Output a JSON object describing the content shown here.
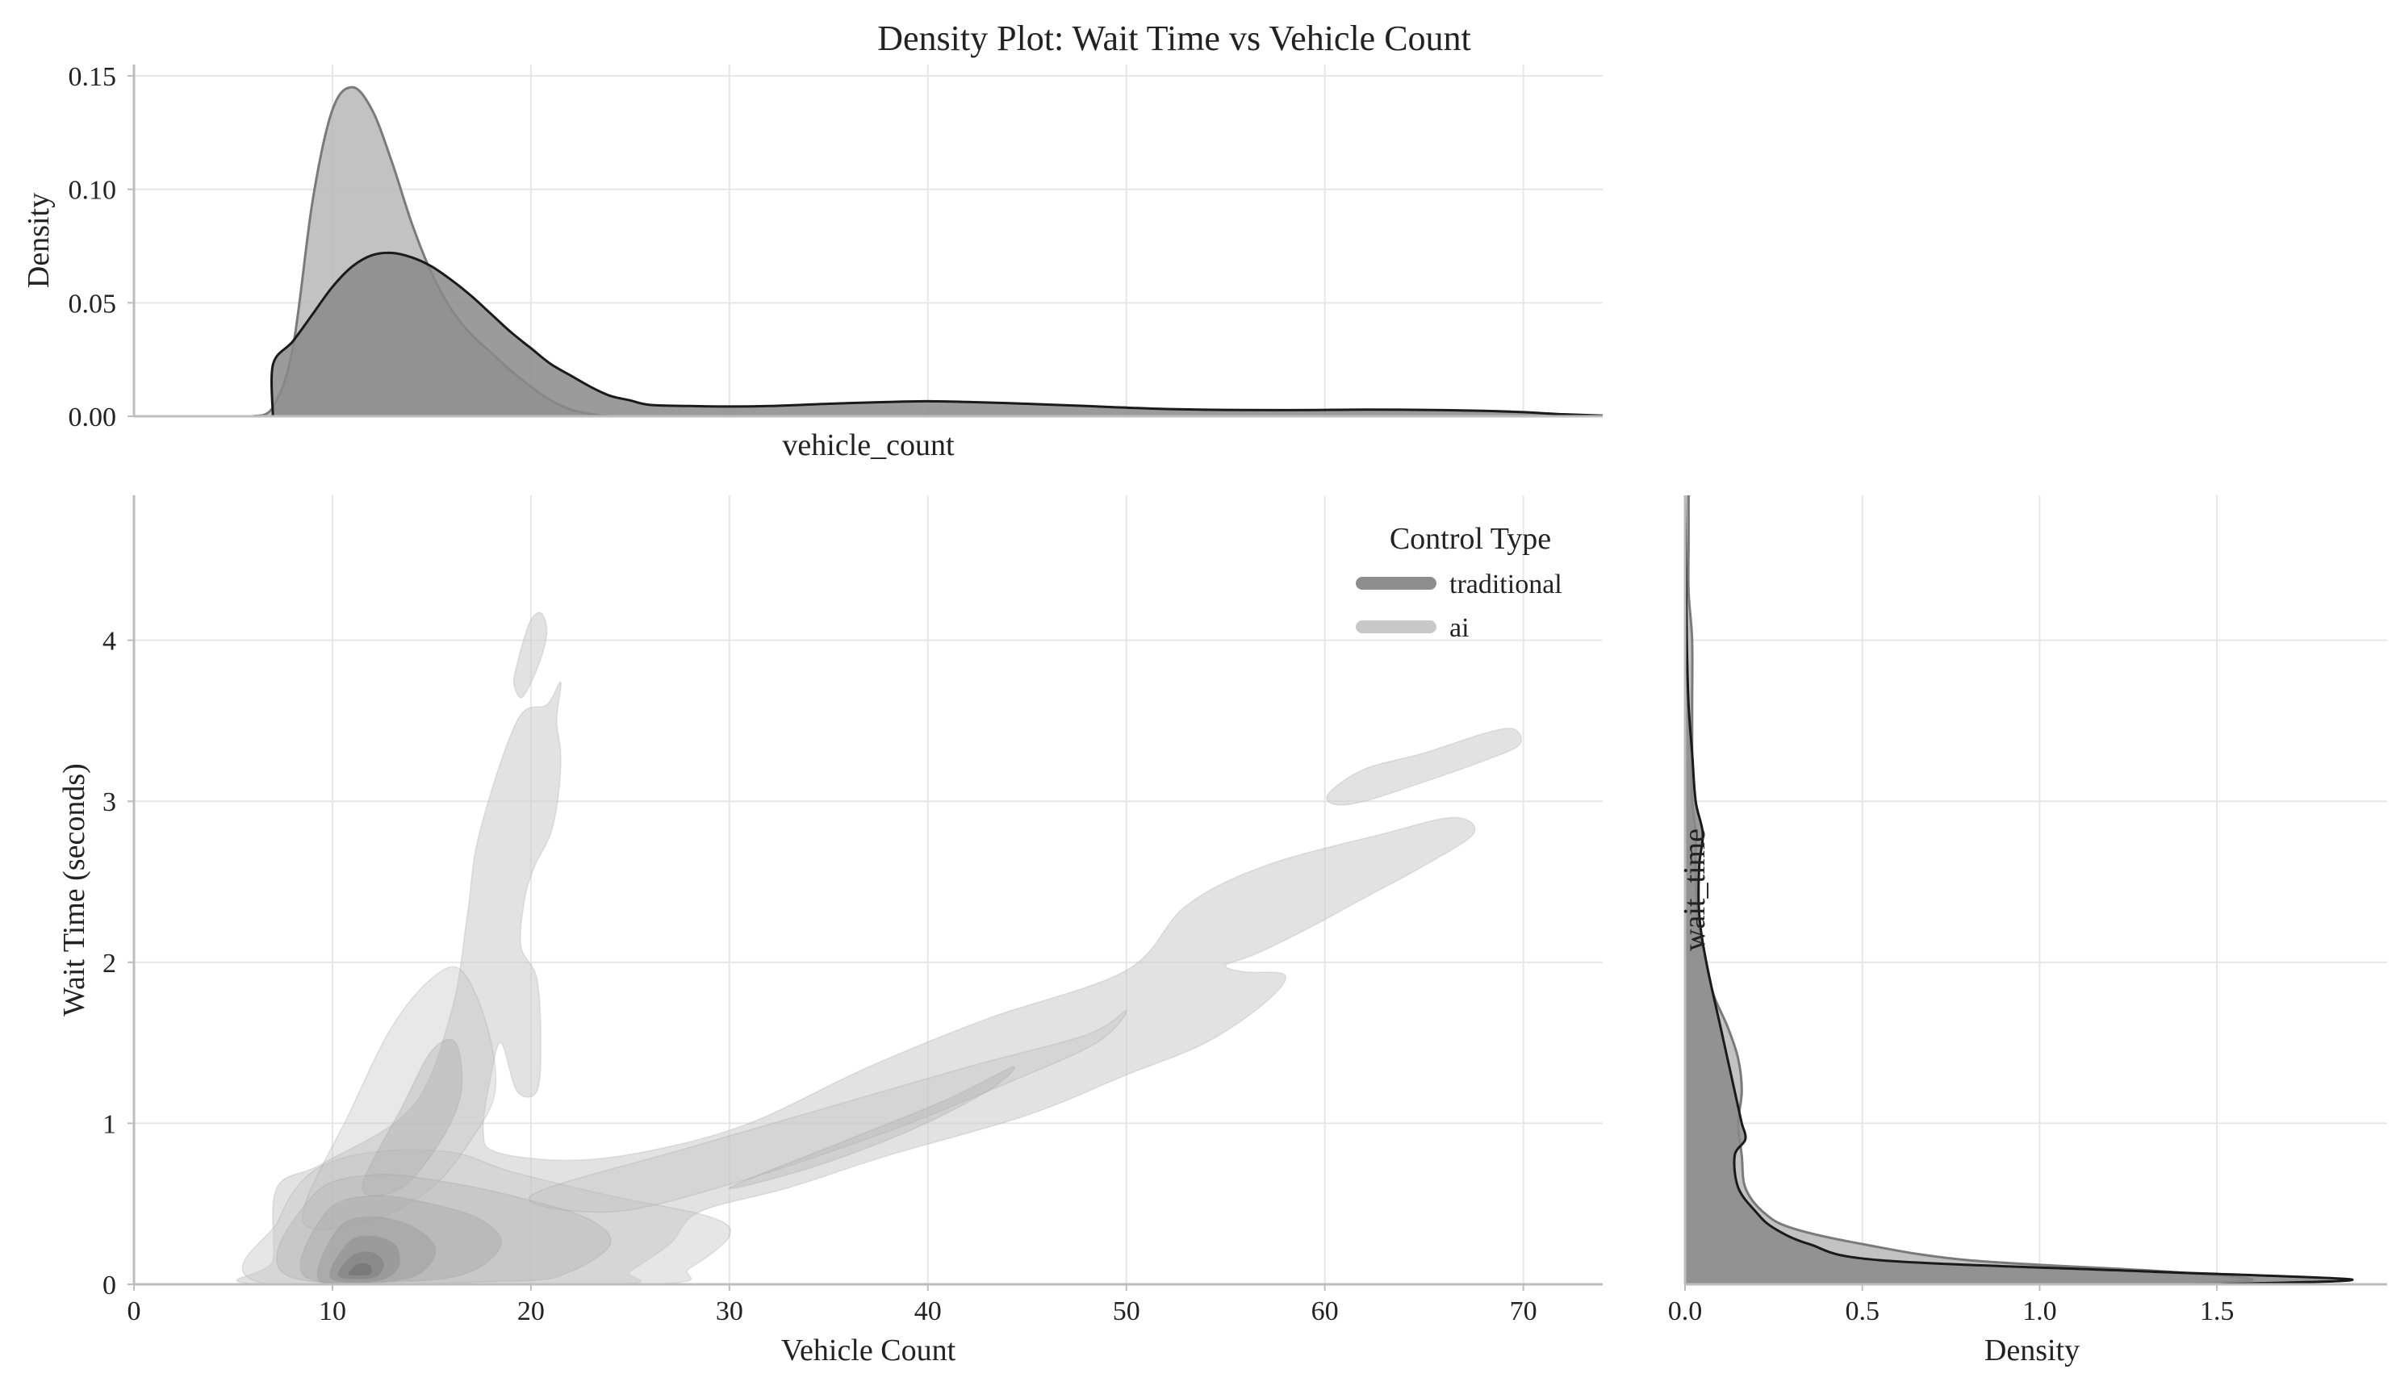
{
  "chart_data": [
    {
      "type": "area",
      "panel": "top-marginal",
      "title": "Density Plot: Wait Time vs Vehicle Count",
      "xlabel": "vehicle_count",
      "ylabel": "Density",
      "xlim": [
        0,
        74
      ],
      "ylim": [
        0,
        0.155
      ],
      "yticks": [
        0.0,
        0.05,
        0.1,
        0.15
      ],
      "ytick_labels": [
        "0.00",
        "0.05",
        "0.10",
        "0.15"
      ],
      "grid": true,
      "series": [
        {
          "name": "ai",
          "color": "#b7b7b7",
          "edge": "#7a7a7a",
          "x": [
            6,
            7,
            8,
            9,
            10,
            11,
            12,
            13,
            14,
            15,
            16,
            17,
            18,
            19,
            20,
            21,
            22,
            23,
            24,
            25,
            26,
            27,
            28
          ],
          "y": [
            0.0,
            0.004,
            0.03,
            0.095,
            0.135,
            0.145,
            0.135,
            0.112,
            0.085,
            0.063,
            0.047,
            0.036,
            0.028,
            0.02,
            0.013,
            0.007,
            0.003,
            0.001,
            0.0,
            0.0,
            0.0,
            0.0,
            0.0
          ]
        },
        {
          "name": "traditional",
          "color": "#8a8a8a",
          "edge": "#1a1a1a",
          "x": [
            7,
            7.01,
            8,
            9,
            10,
            11,
            12,
            13,
            14,
            15,
            16,
            17,
            18,
            19,
            20,
            21,
            22,
            23,
            24,
            25,
            26,
            28,
            30,
            32,
            35,
            38,
            40,
            42,
            45,
            48,
            50,
            52,
            55,
            58,
            60,
            62,
            65,
            68,
            70,
            72,
            74
          ],
          "y": [
            0.0,
            0.023,
            0.033,
            0.045,
            0.057,
            0.066,
            0.071,
            0.072,
            0.07,
            0.066,
            0.06,
            0.053,
            0.045,
            0.037,
            0.03,
            0.023,
            0.018,
            0.013,
            0.009,
            0.007,
            0.005,
            0.0045,
            0.0043,
            0.0045,
            0.0055,
            0.0063,
            0.0066,
            0.0063,
            0.0055,
            0.0045,
            0.0038,
            0.0032,
            0.0028,
            0.0027,
            0.0028,
            0.0029,
            0.0028,
            0.0024,
            0.0018,
            0.0009,
            0.0003
          ]
        }
      ]
    },
    {
      "type": "heatmap",
      "subtype": "kde-contour",
      "panel": "joint",
      "xlabel": "Vehicle Count",
      "ylabel": "Wait Time (seconds)",
      "xlim": [
        0,
        74
      ],
      "ylim": [
        0,
        4.9
      ],
      "xticks": [
        0,
        10,
        20,
        30,
        40,
        50,
        60,
        70
      ],
      "yticks": [
        0,
        1,
        2,
        3,
        4
      ],
      "grid": true,
      "legend": {
        "title": "Control Type",
        "placement": "top-right",
        "entries": [
          {
            "label": "traditional",
            "color": "#8e8e8e"
          },
          {
            "label": "ai",
            "color": "#c8c8c8"
          }
        ]
      },
      "regions": [
        {
          "name": "outer-main",
          "fill": "#cfcfcf",
          "opacity": 0.6,
          "points": [
            [
              6.3,
              0
            ],
            [
              7.0,
              0.15
            ],
            [
              7.2,
              0.6
            ],
            [
              9.5,
              0.75
            ],
            [
              14,
              1.1
            ],
            [
              16,
              1.7
            ],
            [
              16.8,
              2.3
            ],
            [
              17.4,
              2.8
            ],
            [
              19.3,
              3.5
            ],
            [
              20.8,
              3.6
            ],
            [
              21.5,
              3.74
            ],
            [
              21.3,
              3.5
            ],
            [
              21.5,
              3.3
            ],
            [
              21.4,
              3.05
            ],
            [
              21.0,
              2.8
            ],
            [
              20.2,
              2.6
            ],
            [
              19.7,
              2.4
            ],
            [
              19.5,
              2.1
            ],
            [
              20.3,
              1.9
            ],
            [
              20.5,
              1.5
            ],
            [
              20.3,
              1.2
            ],
            [
              19.3,
              1.2
            ],
            [
              18.5,
              1.5
            ],
            [
              18.0,
              1.3
            ],
            [
              17.6,
              0.95
            ],
            [
              18.3,
              0.82
            ],
            [
              22,
              0.77
            ],
            [
              26,
              0.83
            ],
            [
              31,
              1.0
            ],
            [
              37,
              1.35
            ],
            [
              43,
              1.65
            ],
            [
              50,
              1.95
            ],
            [
              53,
              2.35
            ],
            [
              57,
              2.6
            ],
            [
              63,
              2.8
            ],
            [
              66.5,
              2.9
            ],
            [
              67.5,
              2.8
            ],
            [
              65,
              2.6
            ],
            [
              62,
              2.4
            ],
            [
              59,
              2.2
            ],
            [
              56.5,
              2.05
            ],
            [
              55,
              1.98
            ],
            [
              56,
              1.94
            ],
            [
              58,
              1.92
            ],
            [
              57,
              1.75
            ],
            [
              54,
              1.5
            ],
            [
              50,
              1.3
            ],
            [
              45,
              1.05
            ],
            [
              38,
              0.8
            ],
            [
              33,
              0.6
            ],
            [
              28.5,
              0.45
            ],
            [
              27,
              0.25
            ],
            [
              25,
              0.08
            ],
            [
              24,
              0
            ]
          ]
        },
        {
          "name": "upper-blob",
          "fill": "#cfcfcf",
          "opacity": 0.6,
          "points": [
            [
              19.2,
              3.8
            ],
            [
              19.9,
              4.1
            ],
            [
              20.5,
              4.17
            ],
            [
              20.8,
              4.05
            ],
            [
              20.4,
              3.85
            ],
            [
              19.6,
              3.65
            ],
            [
              19.2,
              3.7
            ]
          ]
        },
        {
          "name": "right-blob",
          "fill": "#cfcfcf",
          "opacity": 0.6,
          "points": [
            [
              60.2,
              3.05
            ],
            [
              62,
              3.2
            ],
            [
              65,
              3.3
            ],
            [
              68,
              3.42
            ],
            [
              69.5,
              3.45
            ],
            [
              69.8,
              3.35
            ],
            [
              68,
              3.25
            ],
            [
              65,
              3.12
            ],
            [
              62,
              3.0
            ],
            [
              60.5,
              2.98
            ]
          ]
        },
        {
          "name": "traditional-outer",
          "fill": "#c8c8c8",
          "opacity": 0.45,
          "points": [
            [
              6.8,
              0
            ],
            [
              7.3,
              0.4
            ],
            [
              9,
              0.7
            ],
            [
              12,
              0.82
            ],
            [
              16,
              0.82
            ],
            [
              19,
              0.7
            ],
            [
              24,
              0.55
            ],
            [
              29,
              0.42
            ],
            [
              30,
              0.3
            ],
            [
              28,
              0.1
            ],
            [
              26,
              0
            ]
          ]
        },
        {
          "name": "mid-diagonal",
          "fill": "#bdbdbd",
          "opacity": 0.35,
          "points": [
            [
              20,
              0.55
            ],
            [
              28,
              0.85
            ],
            [
              35,
              1.1
            ],
            [
              42,
              1.35
            ],
            [
              48,
              1.55
            ],
            [
              50,
              1.7
            ],
            [
              48.5,
              1.5
            ],
            [
              44,
              1.25
            ],
            [
              38,
              0.95
            ],
            [
              30,
              0.62
            ],
            [
              24,
              0.45
            ]
          ]
        },
        {
          "name": "inner-diagonal",
          "fill": "#b0b0b0",
          "opacity": 0.35,
          "points": [
            [
              30,
              0.6
            ],
            [
              36,
              0.9
            ],
            [
              41,
              1.15
            ],
            [
              44.3,
              1.35
            ],
            [
              43,
              1.2
            ],
            [
              39,
              0.95
            ],
            [
              34,
              0.72
            ]
          ]
        },
        {
          "name": "vertical-band",
          "fill": "#bdbdbd",
          "opacity": 0.35,
          "points": [
            [
              8.5,
              0.4
            ],
            [
              11,
              1.1
            ],
            [
              13,
              1.6
            ],
            [
              15,
              1.9
            ],
            [
              16.5,
              1.95
            ],
            [
              17.8,
              1.6
            ],
            [
              18.2,
              1.2
            ],
            [
              17,
              0.9
            ],
            [
              15,
              0.6
            ],
            [
              12,
              0.4
            ]
          ]
        },
        {
          "name": "vertical-inner",
          "fill": "#aaaaaa",
          "opacity": 0.35,
          "points": [
            [
              11.5,
              0.6
            ],
            [
              13.5,
              1.1
            ],
            [
              15,
              1.45
            ],
            [
              16.2,
              1.5
            ],
            [
              16.5,
              1.2
            ],
            [
              15.5,
              0.9
            ],
            [
              13.5,
              0.6
            ]
          ]
        },
        {
          "name": "core-1",
          "fill": "#b5b5b5",
          "opacity": 0.4,
          "points": [
            [
              7.8,
              0.05
            ],
            [
              9,
              0.55
            ],
            [
              12,
              0.68
            ],
            [
              16,
              0.63
            ],
            [
              20,
              0.52
            ],
            [
              23,
              0.4
            ],
            [
              24,
              0.25
            ],
            [
              22,
              0.08
            ],
            [
              19,
              0.02
            ]
          ]
        },
        {
          "name": "core-2",
          "fill": "#a5a5a5",
          "opacity": 0.4,
          "points": [
            [
              8.6,
              0.05
            ],
            [
              9.7,
              0.45
            ],
            [
              12,
              0.55
            ],
            [
              15,
              0.5
            ],
            [
              17.5,
              0.4
            ],
            [
              18.5,
              0.25
            ],
            [
              17,
              0.08
            ],
            [
              14,
              0.02
            ]
          ]
        },
        {
          "name": "core-3",
          "fill": "#959595",
          "opacity": 0.4,
          "points": [
            [
              9.3,
              0.03
            ],
            [
              10.3,
              0.35
            ],
            [
              12,
              0.42
            ],
            [
              14,
              0.36
            ],
            [
              15.2,
              0.22
            ],
            [
              14.3,
              0.06
            ],
            [
              12,
              0.01
            ]
          ]
        },
        {
          "name": "core-4",
          "fill": "#878787",
          "opacity": 0.45,
          "points": [
            [
              9.9,
              0.04
            ],
            [
              10.8,
              0.26
            ],
            [
              12,
              0.3
            ],
            [
              13.2,
              0.24
            ],
            [
              13.3,
              0.1
            ],
            [
              12.2,
              0.02
            ]
          ]
        },
        {
          "name": "core-5",
          "fill": "#7a7a7a",
          "opacity": 0.5,
          "points": [
            [
              10.3,
              0.05
            ],
            [
              11,
              0.18
            ],
            [
              12,
              0.2
            ],
            [
              12.6,
              0.13
            ],
            [
              12.1,
              0.04
            ]
          ]
        },
        {
          "name": "core-6",
          "fill": "#6e6e6e",
          "opacity": 0.55,
          "points": [
            [
              10.8,
              0.06
            ],
            [
              11.3,
              0.13
            ],
            [
              11.9,
              0.12
            ],
            [
              11.9,
              0.06
            ]
          ]
        }
      ]
    },
    {
      "type": "area",
      "panel": "right-marginal",
      "orientation": "horizontal",
      "xlabel": "Density",
      "ylabel": "wait_time",
      "xlim": [
        0,
        1.98
      ],
      "ylim": [
        0,
        4.9
      ],
      "xticks": [
        0.0,
        0.5,
        1.0,
        1.5
      ],
      "xtick_labels": [
        "0.0",
        "0.5",
        "1.0",
        "1.5"
      ],
      "grid": true,
      "series": [
        {
          "name": "ai",
          "color": "#b7b7b7",
          "edge": "#7a7a7a",
          "wait": [
            0,
            0.03,
            0.08,
            0.15,
            0.25,
            0.35,
            0.45,
            0.6,
            0.8,
            1.0,
            1.2,
            1.4,
            1.6,
            1.8,
            2.0,
            2.2,
            2.5,
            2.8,
            3.0,
            3.3,
            3.6,
            4.0,
            4.3,
            4.6,
            4.9
          ],
          "density": [
            1.42,
            1.6,
            1.35,
            0.8,
            0.5,
            0.3,
            0.22,
            0.17,
            0.16,
            0.15,
            0.16,
            0.15,
            0.12,
            0.08,
            0.06,
            0.04,
            0.03,
            0.03,
            0.02,
            0.02,
            0.02,
            0.02,
            0.01,
            0.01,
            0.01
          ]
        },
        {
          "name": "traditional",
          "color": "#8a8a8a",
          "edge": "#1a1a1a",
          "wait": [
            0,
            0.03,
            0.08,
            0.15,
            0.25,
            0.35,
            0.45,
            0.6,
            0.8,
            0.9,
            1.0,
            1.1,
            1.2,
            1.4,
            1.6,
            2.0,
            2.3,
            2.6,
            2.8,
            3.0,
            3.3,
            3.6,
            4.0,
            4.9
          ],
          "density": [
            1.5,
            1.88,
            1.3,
            0.55,
            0.35,
            0.25,
            0.2,
            0.15,
            0.14,
            0.17,
            0.16,
            0.15,
            0.14,
            0.12,
            0.1,
            0.06,
            0.04,
            0.04,
            0.05,
            0.03,
            0.02,
            0.01,
            0.005,
            0.0
          ]
        }
      ]
    }
  ]
}
